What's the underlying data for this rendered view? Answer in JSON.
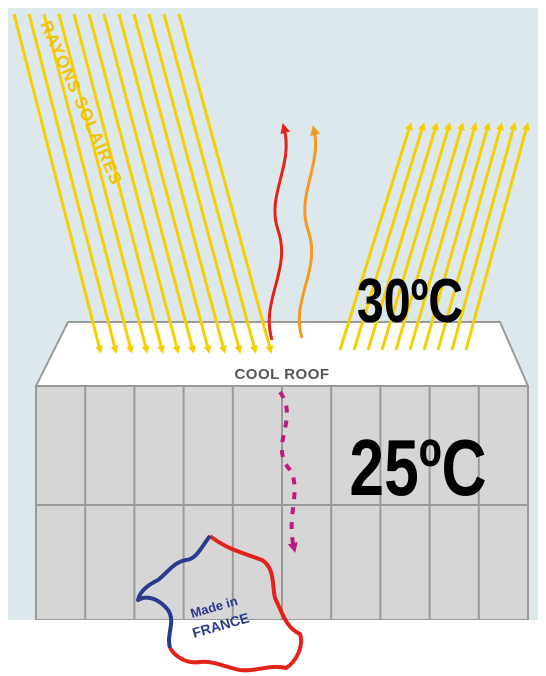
{
  "labels": {
    "rays": "RAYONS SOLAIRES",
    "roof": "COOL ROOF",
    "temp_roof": "30ºC",
    "temp_inside": "25ºC"
  },
  "badge": {
    "line1": "Made in",
    "line2": "FRANCE"
  },
  "colors": {
    "sky": "#dde8ed",
    "sun_ray": "#f5cf00",
    "heat_red": "#e32219",
    "heat_orange": "#f39a20",
    "inside_heat": "#c0197f",
    "roof": "#ffffff",
    "wall": "#d6d6d6",
    "wall_line": "#9a9a9a",
    "badge_blue": "#2a3b8f",
    "badge_red": "#e32219"
  }
}
